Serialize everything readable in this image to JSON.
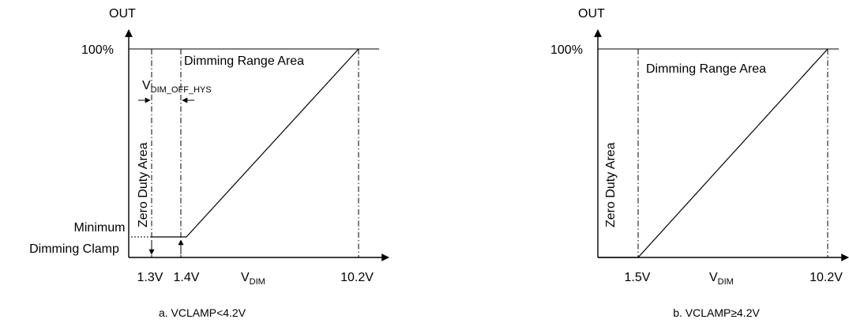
{
  "left_chart": {
    "y_axis_label": "OUT",
    "y_tick_100": "100%",
    "region_dimming": "Dimming Range Area",
    "region_zero": "Zero Duty Area",
    "hysteresis_main": "V",
    "hysteresis_sub": "DIM_OFF_HYS",
    "clamp_line1": "Minimum",
    "clamp_line2": "Dimming Clamp",
    "x_tick_1": "1.3V",
    "x_tick_2": "1.4V",
    "x_tick_3": "10.2V",
    "x_axis_main": "V",
    "x_axis_sub": "DIM",
    "caption_prefix": "a. V",
    "caption_sub": "CLAMP",
    "caption_suffix": "<4.2V"
  },
  "right_chart": {
    "y_axis_label": "OUT",
    "y_tick_100": "100%",
    "region_dimming": "Dimming Range Area",
    "region_zero": "Zero Duty Area",
    "x_tick_1": "1.5V",
    "x_tick_2": "10.2V",
    "x_axis_main": "V",
    "x_axis_sub": "DIM",
    "caption_prefix": "b. V",
    "caption_sub": "CLAMP",
    "caption_suffix": "≥4.2V"
  }
}
